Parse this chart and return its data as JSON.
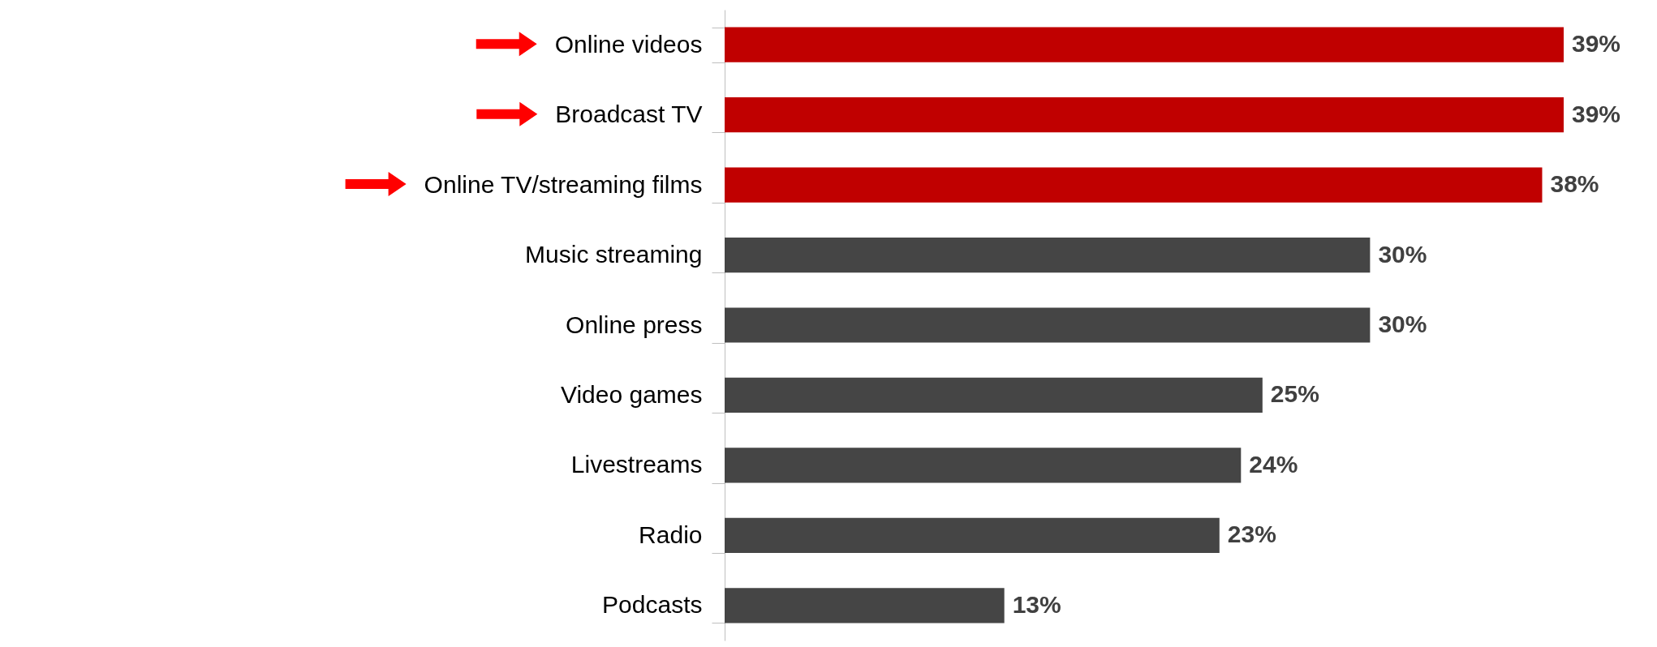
{
  "chart_data": {
    "type": "bar",
    "orientation": "horizontal",
    "categories": [
      "Online videos",
      "Broadcast TV",
      "Online TV/streaming films",
      "Music streaming",
      "Online press",
      "Video games",
      "Livestreams",
      "Radio",
      "Podcasts"
    ],
    "values": [
      39,
      39,
      38,
      30,
      30,
      25,
      24,
      23,
      13
    ],
    "value_labels": [
      "39%",
      "39%",
      "38%",
      "30%",
      "30%",
      "25%",
      "24%",
      "23%",
      "13%"
    ],
    "colors": [
      "#c00000",
      "#c00000",
      "#c00000",
      "#454545",
      "#454545",
      "#454545",
      "#454545",
      "#454545",
      "#454545"
    ],
    "grid": false
  }
}
